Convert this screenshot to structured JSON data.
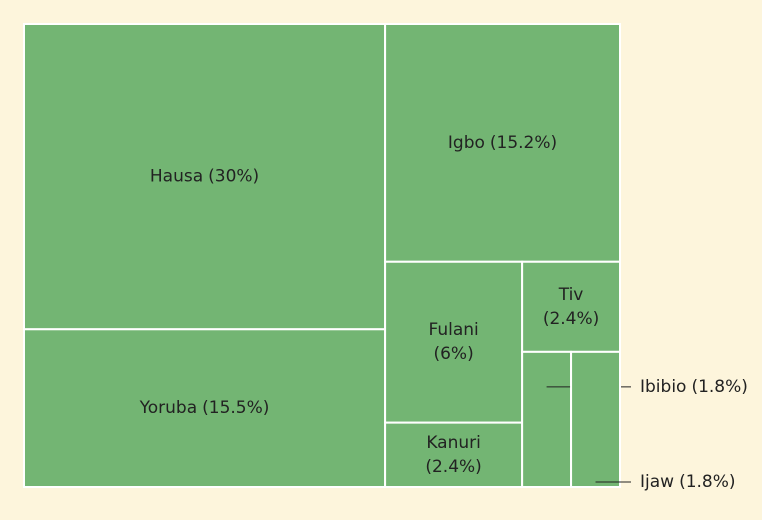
{
  "chart_data": {
    "type": "treemap",
    "categories": [
      "Hausa",
      "Yoruba",
      "Igbo",
      "Fulani",
      "Kanuri",
      "Tiv",
      "Ibibio",
      "Ijaw"
    ],
    "values": [
      30,
      15.5,
      15.2,
      6,
      2.4,
      2.4,
      1.8,
      1.8
    ],
    "value_labels": [
      "(30%)",
      "(15.5%)",
      "(15.2%)",
      "(6%)",
      "(2.4%)",
      "(2.4%)",
      "(1.8%)",
      "(1.8%)"
    ],
    "color": "#73b573"
  }
}
